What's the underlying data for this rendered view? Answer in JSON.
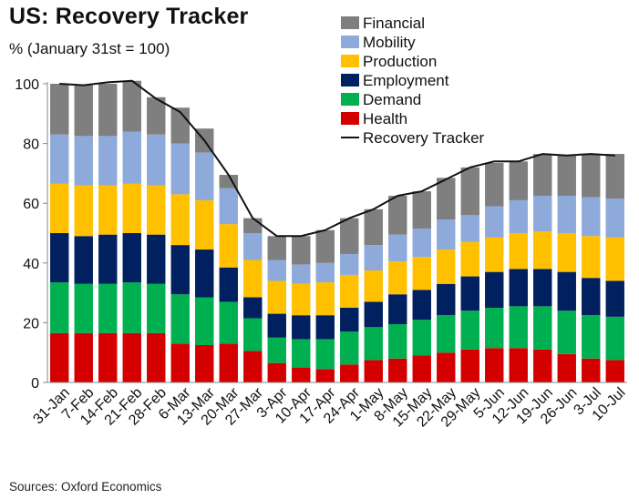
{
  "header": {
    "title": "US: Recovery Tracker",
    "subtitle": "% (January 31st = 100)"
  },
  "footer": {
    "source": "Sources: Oxford Economics"
  },
  "chart_data": {
    "type": "bar",
    "stacked": true,
    "categories": [
      "31-Jan",
      "7-Feb",
      "14-Feb",
      "21-Feb",
      "28-Feb",
      "6-Mar",
      "13-Mar",
      "20-Mar",
      "27-Mar",
      "3-Apr",
      "10-Apr",
      "17-Apr",
      "24-Apr",
      "1-May",
      "8-May",
      "15-May",
      "22-May",
      "29-May",
      "5-Jun",
      "12-Jun",
      "19-Jun",
      "26-Jun",
      "3-Jul",
      "10-Jul"
    ],
    "ylim": [
      0,
      100
    ],
    "yticks": [
      0,
      20,
      40,
      60,
      80,
      100
    ],
    "grid": false,
    "legend_position": "top-right",
    "series": [
      {
        "name": "Health",
        "color": "#d40000",
        "values": [
          16.5,
          16.5,
          16.5,
          16.5,
          16.5,
          13,
          12.5,
          13,
          10.5,
          6.5,
          5,
          4.5,
          6,
          7.5,
          8,
          9,
          10,
          11,
          11.5,
          11.5,
          11,
          9.5,
          8,
          7.5
        ]
      },
      {
        "name": "Demand",
        "color": "#00b050",
        "values": [
          17,
          16.5,
          16.5,
          17,
          16.5,
          16.5,
          16,
          14,
          11,
          8.5,
          9.5,
          10,
          11,
          11,
          11.5,
          12,
          12.5,
          13,
          13.5,
          14,
          14.5,
          14.5,
          14.5,
          14.5
        ]
      },
      {
        "name": "Employment",
        "color": "#002060",
        "values": [
          16.5,
          16,
          16.5,
          16.5,
          16.5,
          16.5,
          16,
          11.5,
          7,
          8,
          8,
          8,
          8,
          8.5,
          10,
          10,
          10.5,
          11.5,
          12,
          12.5,
          12.5,
          13,
          12.5,
          12
        ]
      },
      {
        "name": "Production",
        "color": "#ffc000",
        "values": [
          16.5,
          17,
          16.5,
          16.5,
          16.5,
          17,
          16.5,
          14.5,
          12.5,
          11,
          10.5,
          11,
          11,
          10.5,
          11,
          11,
          11.5,
          11.5,
          11.5,
          12,
          12.5,
          13,
          14,
          14.5
        ]
      },
      {
        "name": "Mobility",
        "color": "#8eaadb",
        "values": [
          16.5,
          16.5,
          16.5,
          17.5,
          17,
          17,
          16,
          12,
          9,
          7,
          6.5,
          6.5,
          7,
          8.5,
          9,
          9.5,
          10,
          9,
          10.5,
          11,
          12,
          12.5,
          13,
          13
        ]
      },
      {
        "name": "Financial",
        "color": "#7f7f7f",
        "values": [
          17,
          17,
          17.5,
          17,
          12.5,
          12,
          8,
          4.5,
          5,
          8,
          9.5,
          11,
          12,
          12,
          13,
          12.5,
          14,
          16,
          14.5,
          13,
          14,
          13.5,
          14.5,
          15
        ]
      }
    ],
    "line": {
      "name": "Recovery Tracker",
      "color": "#111111",
      "values": [
        100,
        99.5,
        100.5,
        101,
        95,
        90.5,
        81,
        69.5,
        55,
        49,
        49,
        51,
        55,
        58,
        62.5,
        64,
        68,
        72,
        74,
        74,
        76.5,
        76,
        76.5,
        76
      ]
    },
    "legend_order": [
      "Financial",
      "Mobility",
      "Production",
      "Employment",
      "Demand",
      "Health",
      "Recovery Tracker"
    ]
  }
}
